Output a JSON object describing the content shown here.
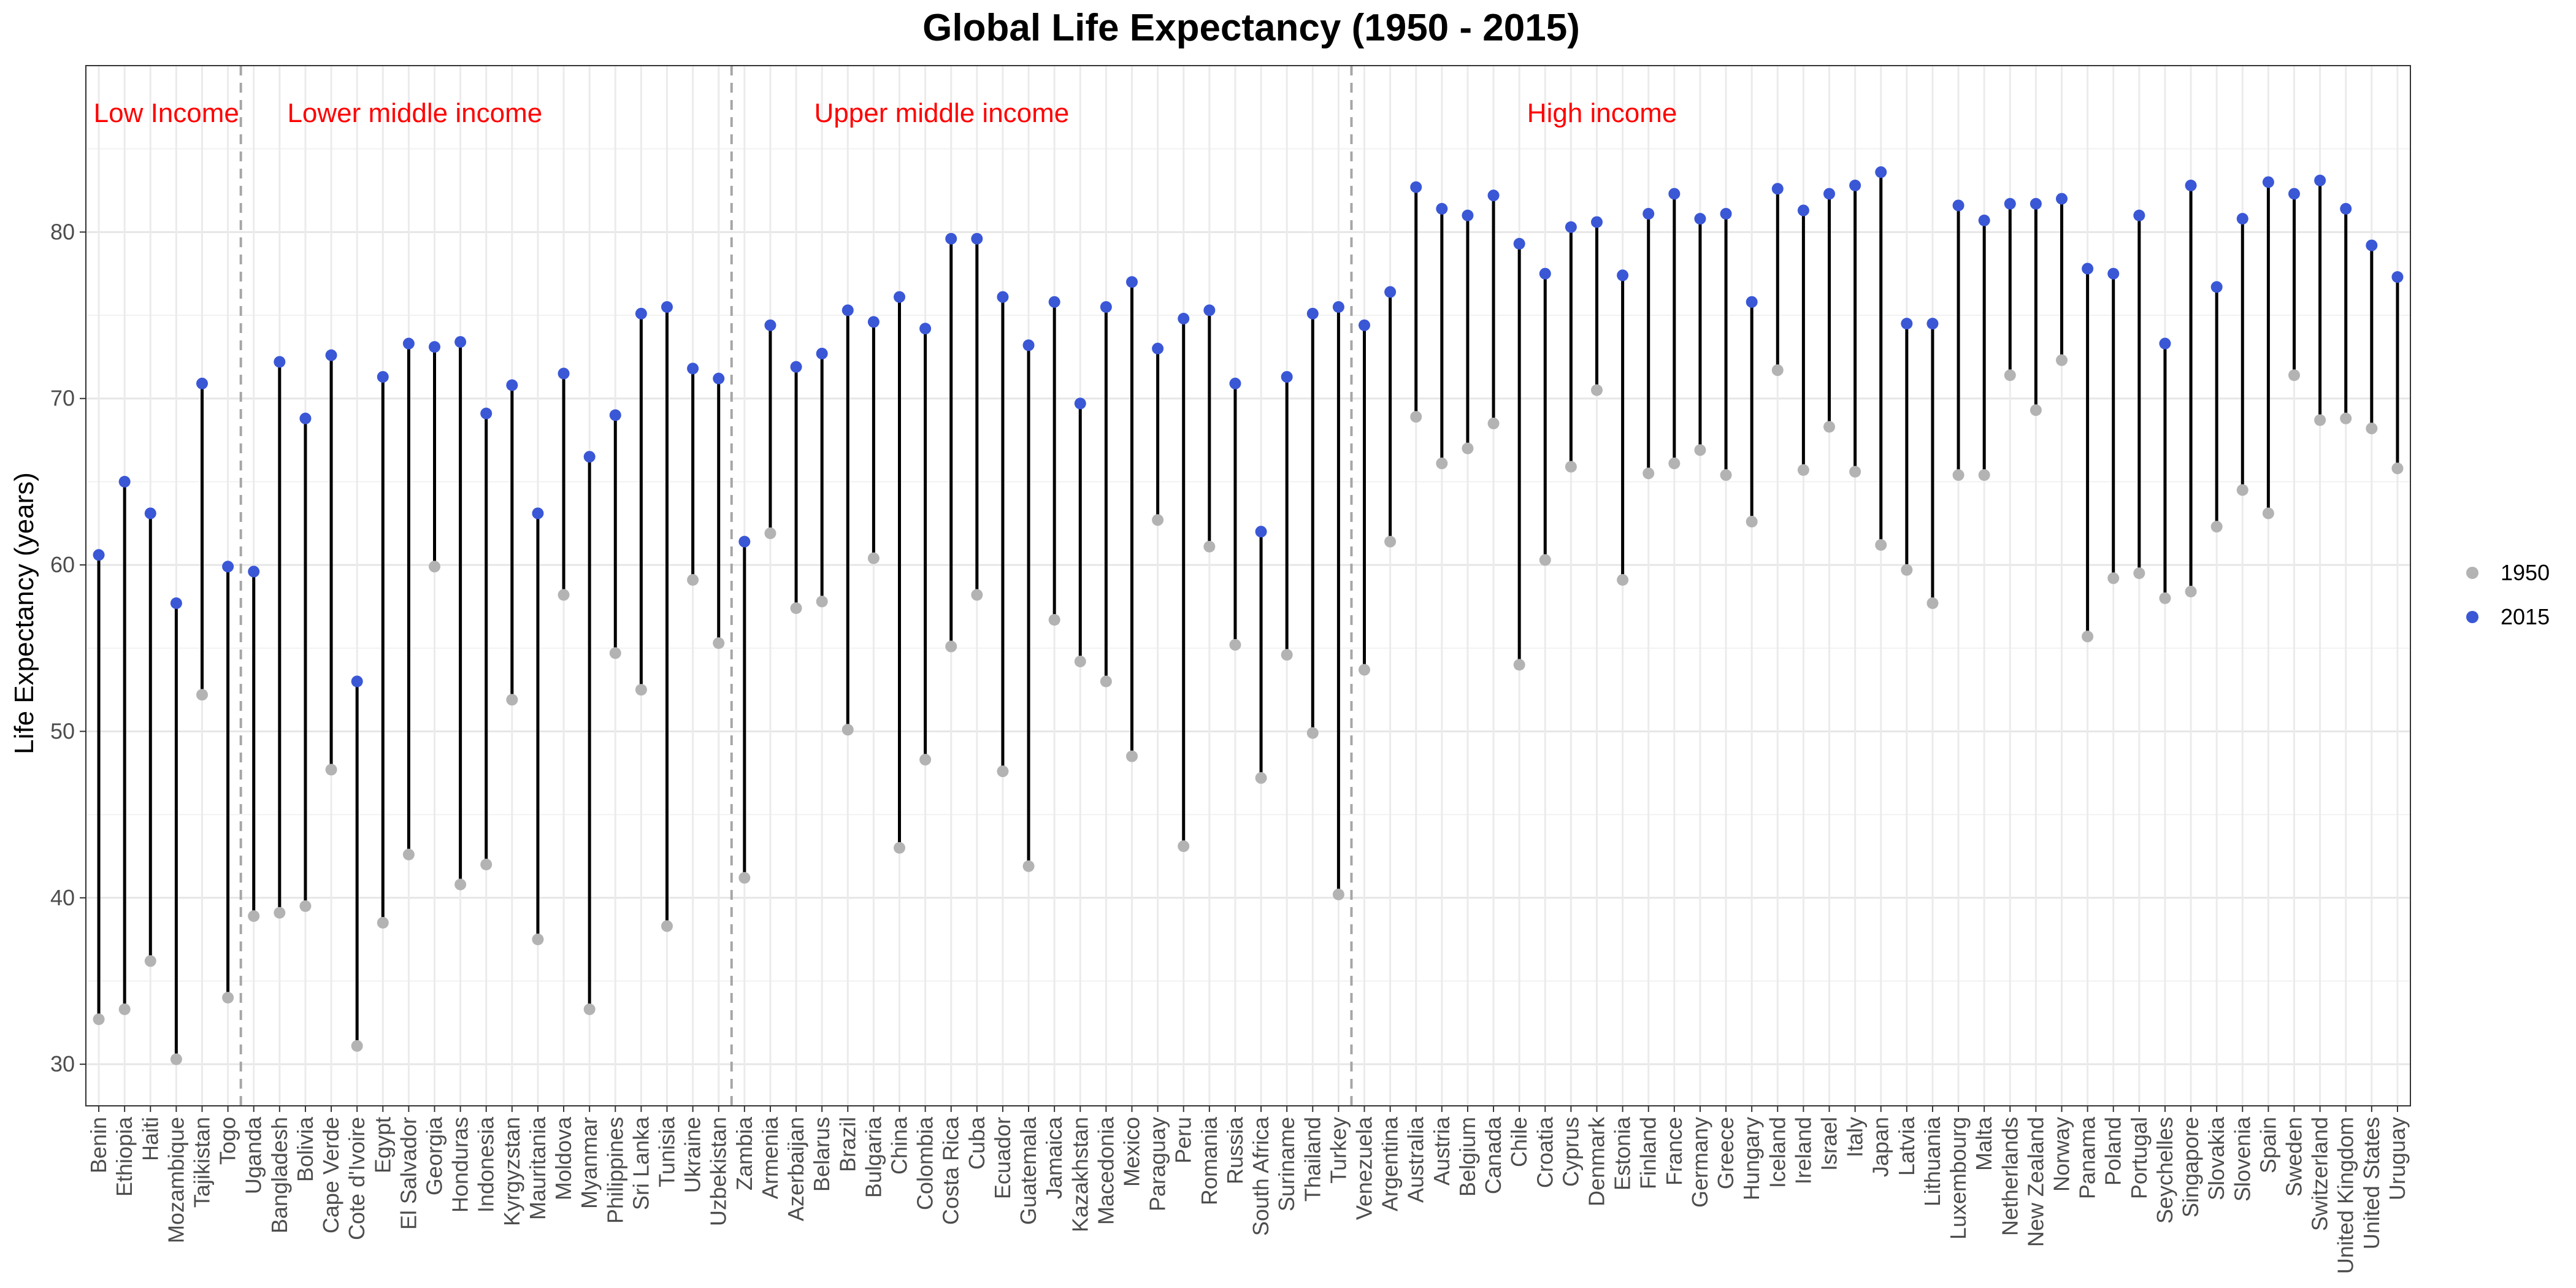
{
  "chart_data": {
    "type": "dumbbell",
    "title": "Global Life Expectancy (1950 - 2015)",
    "xlabel": "",
    "ylabel": "Life Expectancy (years)",
    "ylim": [
      27.5,
      90
    ],
    "yticks": [
      30,
      40,
      50,
      60,
      70,
      80
    ],
    "grid": true,
    "legend_position": "right",
    "series": [
      {
        "name": "1950",
        "color": "#b3b3b3"
      },
      {
        "name": "2015",
        "color": "#3a57d6"
      }
    ],
    "segment_color": "#000000",
    "regions": [
      {
        "label": "Low Income",
        "after_index": 5
      },
      {
        "label": "Lower middle income",
        "after_index": 24
      },
      {
        "label": "Upper middle income",
        "after_index": 48
      },
      {
        "label": "High income",
        "after_index": null
      }
    ],
    "countries": [
      "Benin",
      "Ethiopia",
      "Haiti",
      "Mozambique",
      "Tajikistan",
      "Togo",
      "Uganda",
      "Bangladesh",
      "Bolivia",
      "Cape Verde",
      "Cote d'Ivoire",
      "Egypt",
      "El Salvador",
      "Georgia",
      "Honduras",
      "Indonesia",
      "Kyrgyzstan",
      "Mauritania",
      "Moldova",
      "Myanmar",
      "Philippines",
      "Sri Lanka",
      "Tunisia",
      "Ukraine",
      "Uzbekistan",
      "Zambia",
      "Armenia",
      "Azerbaijan",
      "Belarus",
      "Brazil",
      "Bulgaria",
      "China",
      "Colombia",
      "Costa Rica",
      "Cuba",
      "Ecuador",
      "Guatemala",
      "Jamaica",
      "Kazakhstan",
      "Macedonia",
      "Mexico",
      "Paraguay",
      "Peru",
      "Romania",
      "Russia",
      "South Africa",
      "Suriname",
      "Thailand",
      "Turkey",
      "Venezuela",
      "Argentina",
      "Australia",
      "Austria",
      "Belgium",
      "Canada",
      "Chile",
      "Croatia",
      "Cyprus",
      "Denmark",
      "Estonia",
      "Finland",
      "France",
      "Germany",
      "Greece",
      "Hungary",
      "Iceland",
      "Ireland",
      "Israel",
      "Italy",
      "Japan",
      "Latvia",
      "Lithuania",
      "Luxembourg",
      "Malta",
      "Netherlands",
      "New Zealand",
      "Norway",
      "Panama",
      "Poland",
      "Portugal",
      "Seychelles",
      "Singapore",
      "Slovakia",
      "Slovenia",
      "Spain",
      "Sweden",
      "Switzerland",
      "United Kingdom",
      "United States",
      "Uruguay"
    ],
    "y1950": [
      32.7,
      33.3,
      36.2,
      30.3,
      52.2,
      34.0,
      38.9,
      39.1,
      39.5,
      47.7,
      31.1,
      38.5,
      42.6,
      59.9,
      40.8,
      42.0,
      51.9,
      37.5,
      58.2,
      33.3,
      54.7,
      52.5,
      38.3,
      59.1,
      55.3,
      41.2,
      61.9,
      57.4,
      57.8,
      50.1,
      60.4,
      43.0,
      48.3,
      55.1,
      58.2,
      47.6,
      41.9,
      56.7,
      54.2,
      53.0,
      48.5,
      62.7,
      43.1,
      61.1,
      55.2,
      47.2,
      54.6,
      49.9,
      40.2,
      53.7,
      61.4,
      68.9,
      66.1,
      67.0,
      68.5,
      54.0,
      60.3,
      65.9,
      70.5,
      59.1,
      65.5,
      66.1,
      66.9,
      65.4,
      62.6,
      71.7,
      65.7,
      68.3,
      65.6,
      61.2,
      59.7,
      57.7,
      65.4,
      65.4,
      71.4,
      69.3,
      72.3,
      55.7,
      59.2,
      59.5,
      58.0,
      58.4,
      62.3,
      64.5,
      63.1,
      71.4,
      68.7,
      68.8,
      68.2,
      65.8
    ],
    "y2015": [
      60.6,
      65.0,
      63.1,
      57.7,
      70.9,
      59.9,
      59.6,
      72.2,
      68.8,
      72.6,
      53.0,
      71.3,
      73.3,
      73.1,
      73.4,
      69.1,
      70.8,
      63.1,
      71.5,
      66.5,
      69.0,
      75.1,
      75.5,
      71.8,
      71.2,
      61.4,
      74.4,
      71.9,
      72.7,
      75.3,
      74.6,
      76.1,
      74.2,
      79.6,
      79.6,
      76.1,
      73.2,
      75.8,
      69.7,
      75.5,
      77.0,
      73.0,
      74.8,
      75.3,
      70.9,
      62.0,
      71.3,
      75.1,
      75.5,
      74.4,
      76.4,
      82.7,
      81.4,
      81.0,
      82.2,
      79.3,
      77.5,
      80.3,
      80.6,
      77.4,
      81.1,
      82.3,
      80.8,
      81.1,
      75.8,
      82.6,
      81.3,
      82.3,
      82.8,
      83.6,
      74.5,
      74.5,
      81.6,
      80.7,
      81.7,
      81.7,
      82.0,
      77.8,
      77.5,
      81.0,
      73.3,
      82.8,
      76.7,
      80.8,
      83.0,
      82.3,
      83.1,
      81.4,
      79.2,
      77.3
    ]
  }
}
